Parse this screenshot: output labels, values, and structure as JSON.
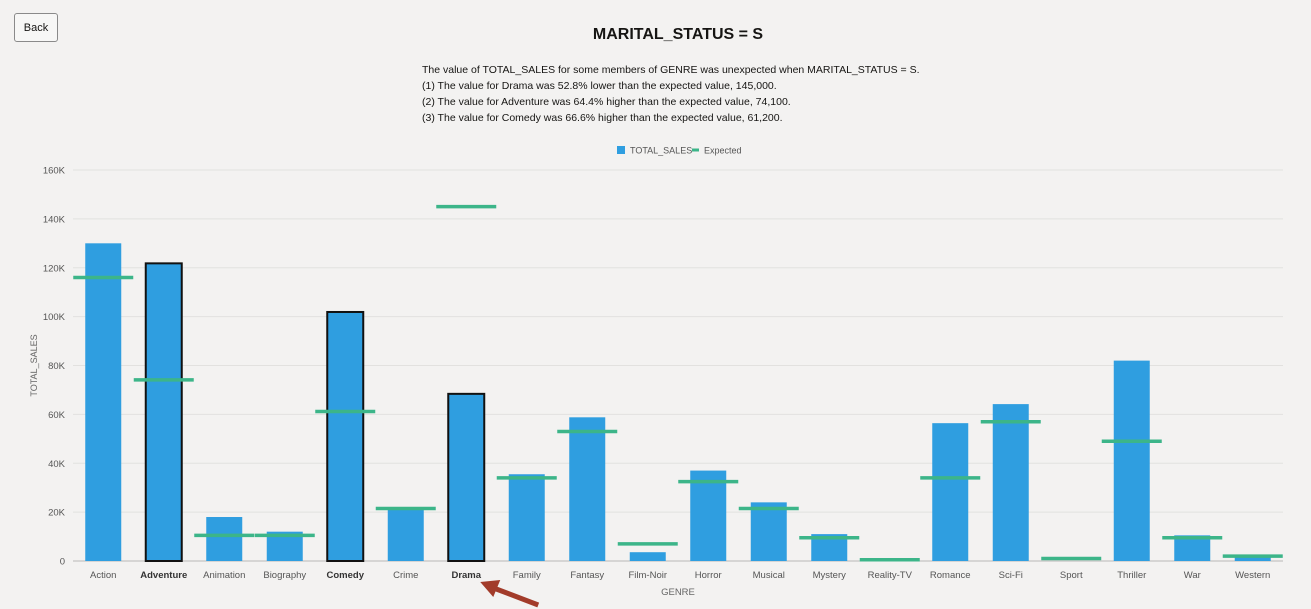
{
  "back_label": "Back",
  "title": "MARITAL_STATUS = S",
  "summary_lines": [
    "The value of TOTAL_SALES for some members of GENRE was unexpected when MARITAL_STATUS = S.",
    "(1) The value for Drama was 52.8% lower than the expected value, 145,000.",
    "(2) The value for Adventure was 64.4% higher than the expected value, 74,100.",
    "(3) The value for Comedy was 66.6% higher than the expected value, 61,200."
  ],
  "colors": {
    "bar": "#2f9ee0",
    "expected": "#3cb589",
    "highlight_border": "#111111"
  },
  "chart_data": {
    "type": "bar",
    "xlabel": "GENRE",
    "ylabel": "TOTAL_SALES",
    "ylim": [
      0,
      160000
    ],
    "yticks": [
      "0",
      "20K",
      "40K",
      "60K",
      "80K",
      "100K",
      "120K",
      "140K",
      "160K"
    ],
    "legend": [
      "TOTAL_SALES",
      "Expected"
    ],
    "legend_position": "top-center",
    "grid": true,
    "categories": [
      "Action",
      "Adventure",
      "Animation",
      "Biography",
      "Comedy",
      "Crime",
      "Drama",
      "Family",
      "Fantasy",
      "Film-Noir",
      "Horror",
      "Musical",
      "Mystery",
      "Reality-TV",
      "Romance",
      "Sci-Fi",
      "Sport",
      "Thriller",
      "War",
      "Western"
    ],
    "series": [
      {
        "name": "TOTAL_SALES",
        "values": [
          130000,
          121800,
          18000,
          12000,
          101900,
          21000,
          68400,
          35500,
          58800,
          3600,
          37000,
          24000,
          11000,
          0,
          56400,
          64200,
          0,
          82000,
          10500,
          2000
        ]
      },
      {
        "name": "Expected",
        "values": [
          116000,
          74100,
          10500,
          10500,
          61200,
          21500,
          145000,
          34000,
          53000,
          7000,
          32500,
          21500,
          9500,
          500,
          34000,
          57000,
          1000,
          49000,
          9500,
          2000
        ]
      }
    ],
    "highlighted": [
      "Adventure",
      "Comedy",
      "Drama"
    ]
  }
}
